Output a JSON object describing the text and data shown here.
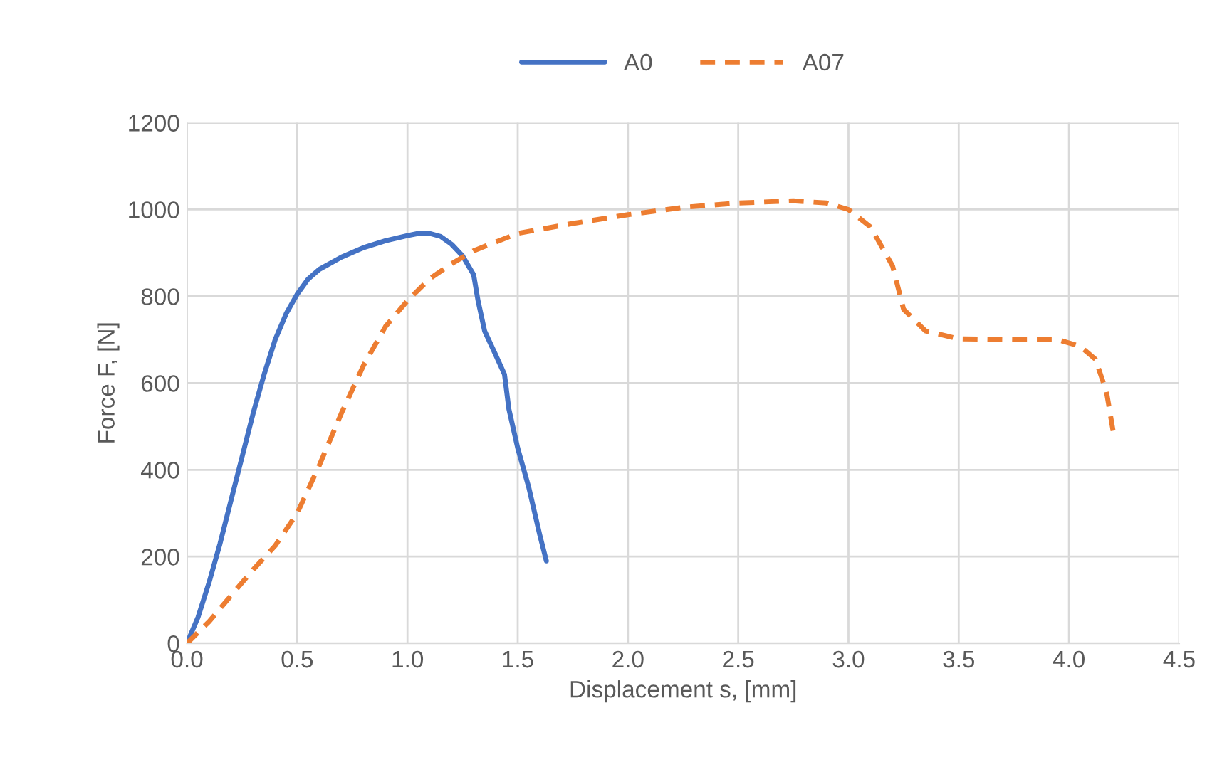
{
  "chart_data": {
    "type": "line",
    "xlabel": "Displacement s, [mm]",
    "ylabel": "Force F, [N]",
    "series": [
      {
        "name": "A0",
        "color": "#4472c4",
        "line_style": "solid",
        "x": [
          0,
          0.05,
          0.1,
          0.15,
          0.2,
          0.25,
          0.3,
          0.35,
          0.4,
          0.45,
          0.5,
          0.55,
          0.6,
          0.7,
          0.8,
          0.9,
          1.0,
          1.05,
          1.1,
          1.15,
          1.2,
          1.25,
          1.3,
          1.32,
          1.35,
          1.4,
          1.44,
          1.46,
          1.5,
          1.55,
          1.6,
          1.63
        ],
        "values": [
          0,
          60,
          140,
          230,
          330,
          430,
          530,
          620,
          700,
          760,
          805,
          840,
          862,
          890,
          912,
          928,
          940,
          945,
          945,
          938,
          920,
          893,
          850,
          790,
          720,
          665,
          620,
          540,
          450,
          360,
          250,
          190
        ]
      },
      {
        "name": "A07",
        "color": "#ed7d31",
        "line_style": "dashed",
        "x": [
          0,
          0.1,
          0.2,
          0.3,
          0.4,
          0.5,
          0.6,
          0.7,
          0.8,
          0.9,
          1.0,
          1.1,
          1.2,
          1.3,
          1.5,
          1.75,
          2.0,
          2.25,
          2.5,
          2.75,
          2.9,
          3.0,
          3.1,
          3.2,
          3.25,
          3.35,
          3.5,
          3.75,
          3.95,
          4.05,
          4.12,
          4.17,
          4.2
        ],
        "values": [
          0,
          50,
          110,
          170,
          225,
          300,
          410,
          530,
          640,
          730,
          790,
          840,
          875,
          905,
          945,
          968,
          988,
          1005,
          1015,
          1020,
          1015,
          1000,
          960,
          870,
          770,
          720,
          702,
          700,
          700,
          685,
          655,
          580,
          490
        ]
      }
    ],
    "xlim": [
      0,
      4.5
    ],
    "xticks": [
      {
        "value": 0,
        "label": "0.0"
      },
      0.5,
      {
        "value": 1,
        "label": "1.0"
      },
      1.5,
      {
        "value": 2,
        "label": "2.0"
      },
      2.5,
      {
        "value": 3,
        "label": "3.0"
      },
      3.5,
      {
        "value": 4,
        "label": "4.0"
      },
      4.5
    ],
    "ylim": [
      0,
      1200
    ],
    "yticks": [
      0,
      200,
      400,
      600,
      800,
      1000,
      1200
    ],
    "grid": true,
    "legend": "top",
    "marker": "none"
  }
}
